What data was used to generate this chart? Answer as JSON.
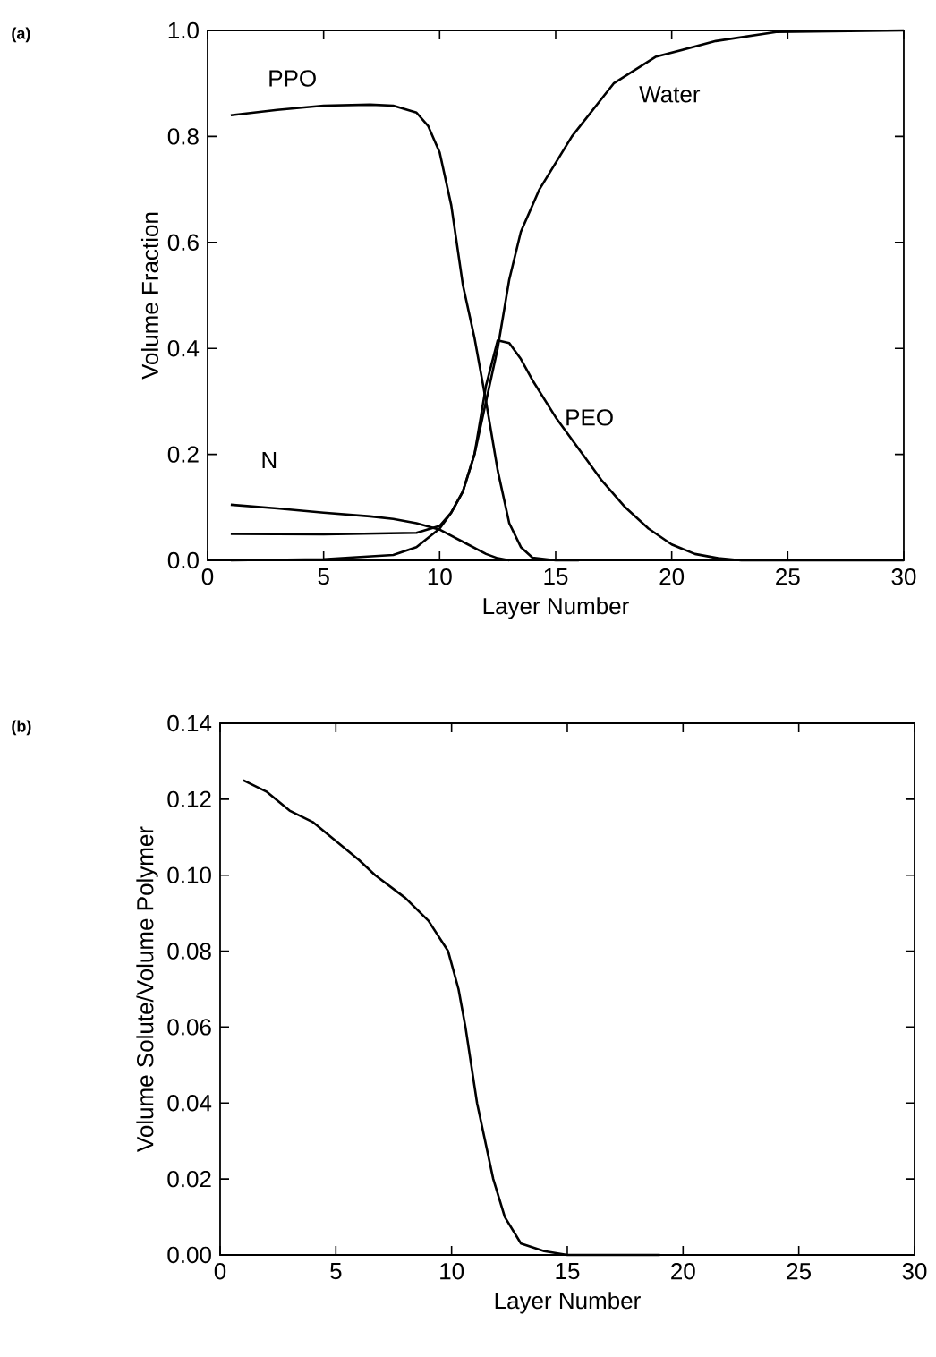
{
  "chart_data": [
    {
      "type": "line",
      "annotations": [
        "(a)"
      ],
      "xlabel": "Layer Number",
      "ylabel": "Volume Fraction",
      "xlim": [
        0,
        30
      ],
      "ylim": [
        0,
        1.0
      ],
      "xticks": [
        0,
        5,
        10,
        15,
        20,
        25,
        30
      ],
      "yticks": [
        {
          "value": 0,
          "label": "0.0"
        },
        0.2,
        0.4,
        0.6,
        0.8,
        {
          "value": 1,
          "label": "1.0"
        }
      ],
      "grid": false,
      "series": [
        {
          "name": "PPO",
          "color": "#000000",
          "x": [
            1,
            3,
            5,
            7,
            8,
            9,
            9.5,
            10,
            10.5,
            11,
            11.5,
            12,
            12.5,
            13,
            13.5,
            14,
            15,
            16
          ],
          "values": [
            0.84,
            0.85,
            0.858,
            0.86,
            0.858,
            0.845,
            0.82,
            0.77,
            0.67,
            0.52,
            0.42,
            0.3,
            0.17,
            0.07,
            0.025,
            0.005,
            0,
            0
          ]
        },
        {
          "name": "Water",
          "color": "#000000",
          "x": [
            1,
            5,
            8,
            9,
            10,
            10.5,
            11,
            11.5,
            12,
            12.5,
            13,
            13.5,
            14.3,
            15.7,
            17.5,
            19.3,
            21.9,
            24.5,
            30
          ],
          "values": [
            0,
            0.002,
            0.01,
            0.025,
            0.06,
            0.09,
            0.13,
            0.2,
            0.3,
            0.4,
            0.53,
            0.62,
            0.7,
            0.8,
            0.9,
            0.95,
            0.98,
            0.997,
            1.0
          ]
        },
        {
          "name": "PEO",
          "color": "#000000",
          "x": [
            1,
            5,
            9,
            10,
            10.5,
            11,
            11.5,
            12,
            12.5,
            13,
            13.5,
            14,
            15,
            16,
            17,
            18,
            19,
            20,
            21,
            22,
            23,
            30
          ],
          "values": [
            0.05,
            0.049,
            0.052,
            0.065,
            0.09,
            0.13,
            0.2,
            0.33,
            0.415,
            0.41,
            0.38,
            0.34,
            0.27,
            0.21,
            0.15,
            0.1,
            0.06,
            0.03,
            0.012,
            0.004,
            0,
            0
          ]
        },
        {
          "name": "N",
          "color": "#000000",
          "x": [
            1,
            3,
            5,
            7,
            8,
            9,
            10,
            11,
            12,
            12.5,
            13
          ],
          "values": [
            0.105,
            0.098,
            0.09,
            0.083,
            0.078,
            0.07,
            0.058,
            0.035,
            0.012,
            0.004,
            0
          ]
        }
      ]
    },
    {
      "type": "line",
      "annotations": [
        "(b)"
      ],
      "xlabel": "Layer Number",
      "ylabel": "Volume Solute/Volume Polymer",
      "xlim": [
        0,
        30
      ],
      "ylim": [
        0,
        0.14
      ],
      "xticks": [
        0,
        5,
        10,
        15,
        20,
        25,
        30
      ],
      "yticks": [
        {
          "value": 0,
          "label": "0.00"
        },
        {
          "value": 0.02,
          "label": "0.02"
        },
        {
          "value": 0.04,
          "label": "0.04"
        },
        {
          "value": 0.06,
          "label": "0.06"
        },
        {
          "value": 0.08,
          "label": "0.08"
        },
        {
          "value": 0.1,
          "label": "0.10"
        },
        {
          "value": 0.12,
          "label": "0.12"
        },
        {
          "value": 0.14,
          "label": "0.14"
        }
      ],
      "grid": false,
      "series": [
        {
          "color": "#000000",
          "x": [
            1,
            2,
            2.4,
            3,
            4,
            5,
            6,
            6.7,
            8,
            9,
            9.85,
            10.3,
            10.6,
            11.1,
            11.8,
            12.3,
            13,
            14,
            15,
            19
          ],
          "values": [
            0.125,
            0.122,
            0.12,
            0.117,
            0.114,
            0.109,
            0.104,
            0.1,
            0.094,
            0.088,
            0.08,
            0.07,
            0.06,
            0.04,
            0.02,
            0.01,
            0.003,
            0.001,
            0,
            0
          ]
        }
      ]
    }
  ]
}
